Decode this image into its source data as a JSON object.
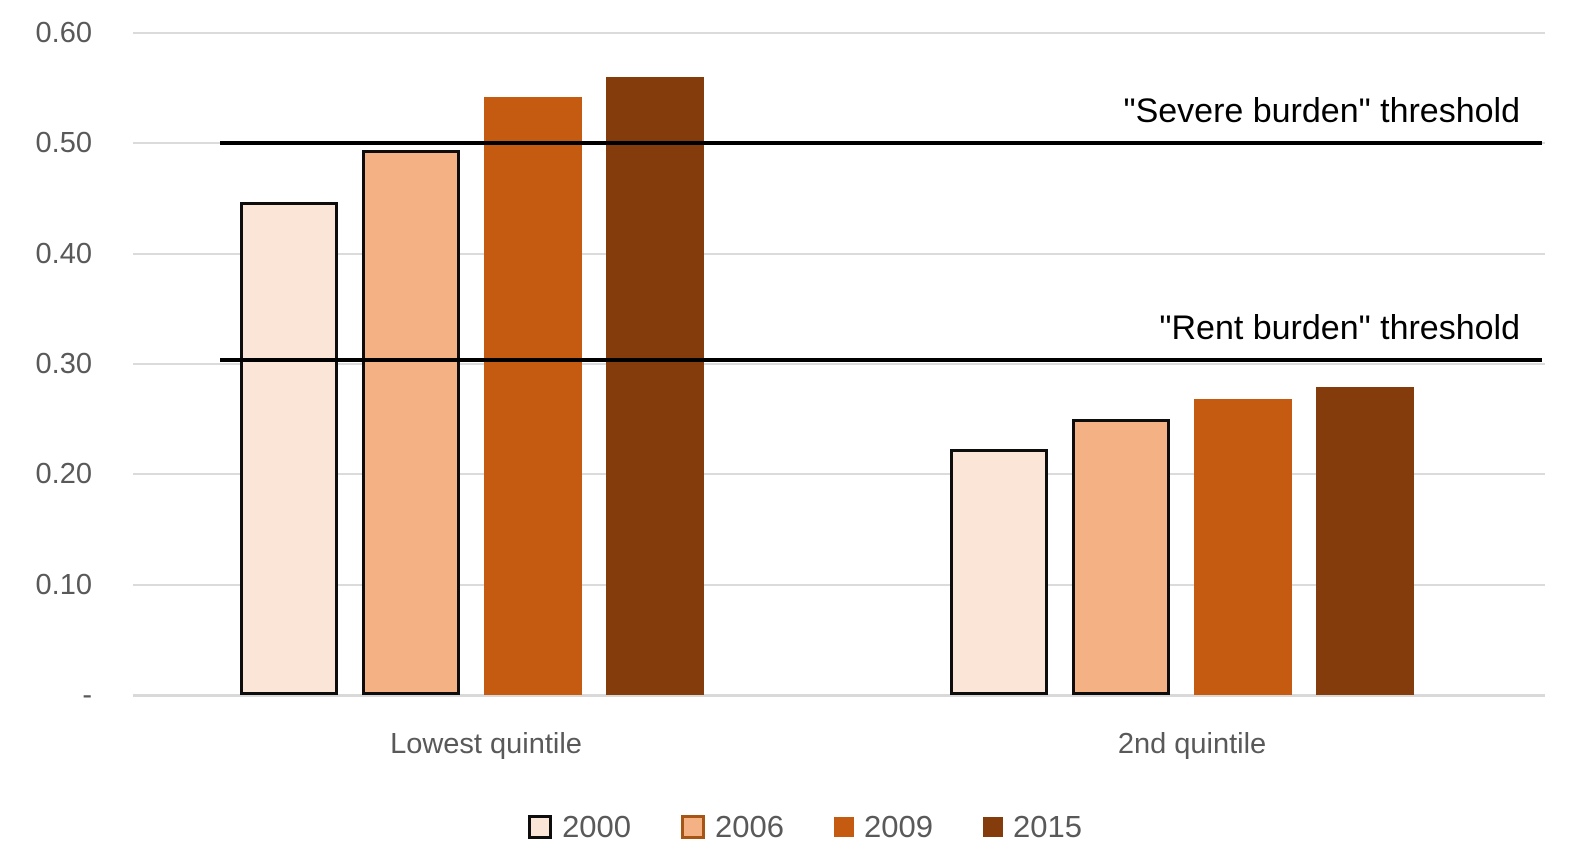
{
  "chart_data": {
    "type": "bar",
    "title": "",
    "xlabel": "",
    "ylabel": "",
    "categories": [
      "Lowest quintile",
      "2nd quintile"
    ],
    "series": [
      {
        "name": "2000",
        "values": [
          0.447,
          0.223
        ],
        "fill": "#FBE5D6",
        "border": "#0D0D0D",
        "legend_border": "#0D0D0D"
      },
      {
        "name": "2006",
        "values": [
          0.494,
          0.25
        ],
        "fill": "#F4B183",
        "border": "#0D0D0D",
        "legend_border": "#A85413"
      },
      {
        "name": "2009",
        "values": [
          0.542,
          0.268
        ],
        "fill": "#C55A11",
        "border": "",
        "legend_border": ""
      },
      {
        "name": "2015",
        "values": [
          0.56,
          0.279
        ],
        "fill": "#843C0C",
        "border": "",
        "legend_border": ""
      }
    ],
    "ylim": [
      0,
      0.6
    ],
    "y_ticks": [
      {
        "label": "0.60",
        "value": 0.6
      },
      {
        "label": "0.50",
        "value": 0.5
      },
      {
        "label": "0.40",
        "value": 0.4
      },
      {
        "label": "0.30",
        "value": 0.3
      },
      {
        "label": "0.20",
        "value": 0.2
      },
      {
        "label": "0.10",
        "value": 0.1
      },
      {
        "label": "-",
        "value": 0.0
      }
    ],
    "grid": true,
    "legend_position": "bottom",
    "annotations": [
      {
        "name": "severe-burden-threshold",
        "label": "\"Severe burden\" threshold",
        "value": 0.5
      },
      {
        "name": "rent-burden-threshold",
        "label": "\"Rent burden\" threshold",
        "value": 0.304
      }
    ]
  },
  "colors": {
    "background": "#FFFFFF",
    "gridline": "#DBDBDB",
    "axis_text": "#595959",
    "threshold_line": "#000000",
    "threshold_text": "#000000"
  }
}
